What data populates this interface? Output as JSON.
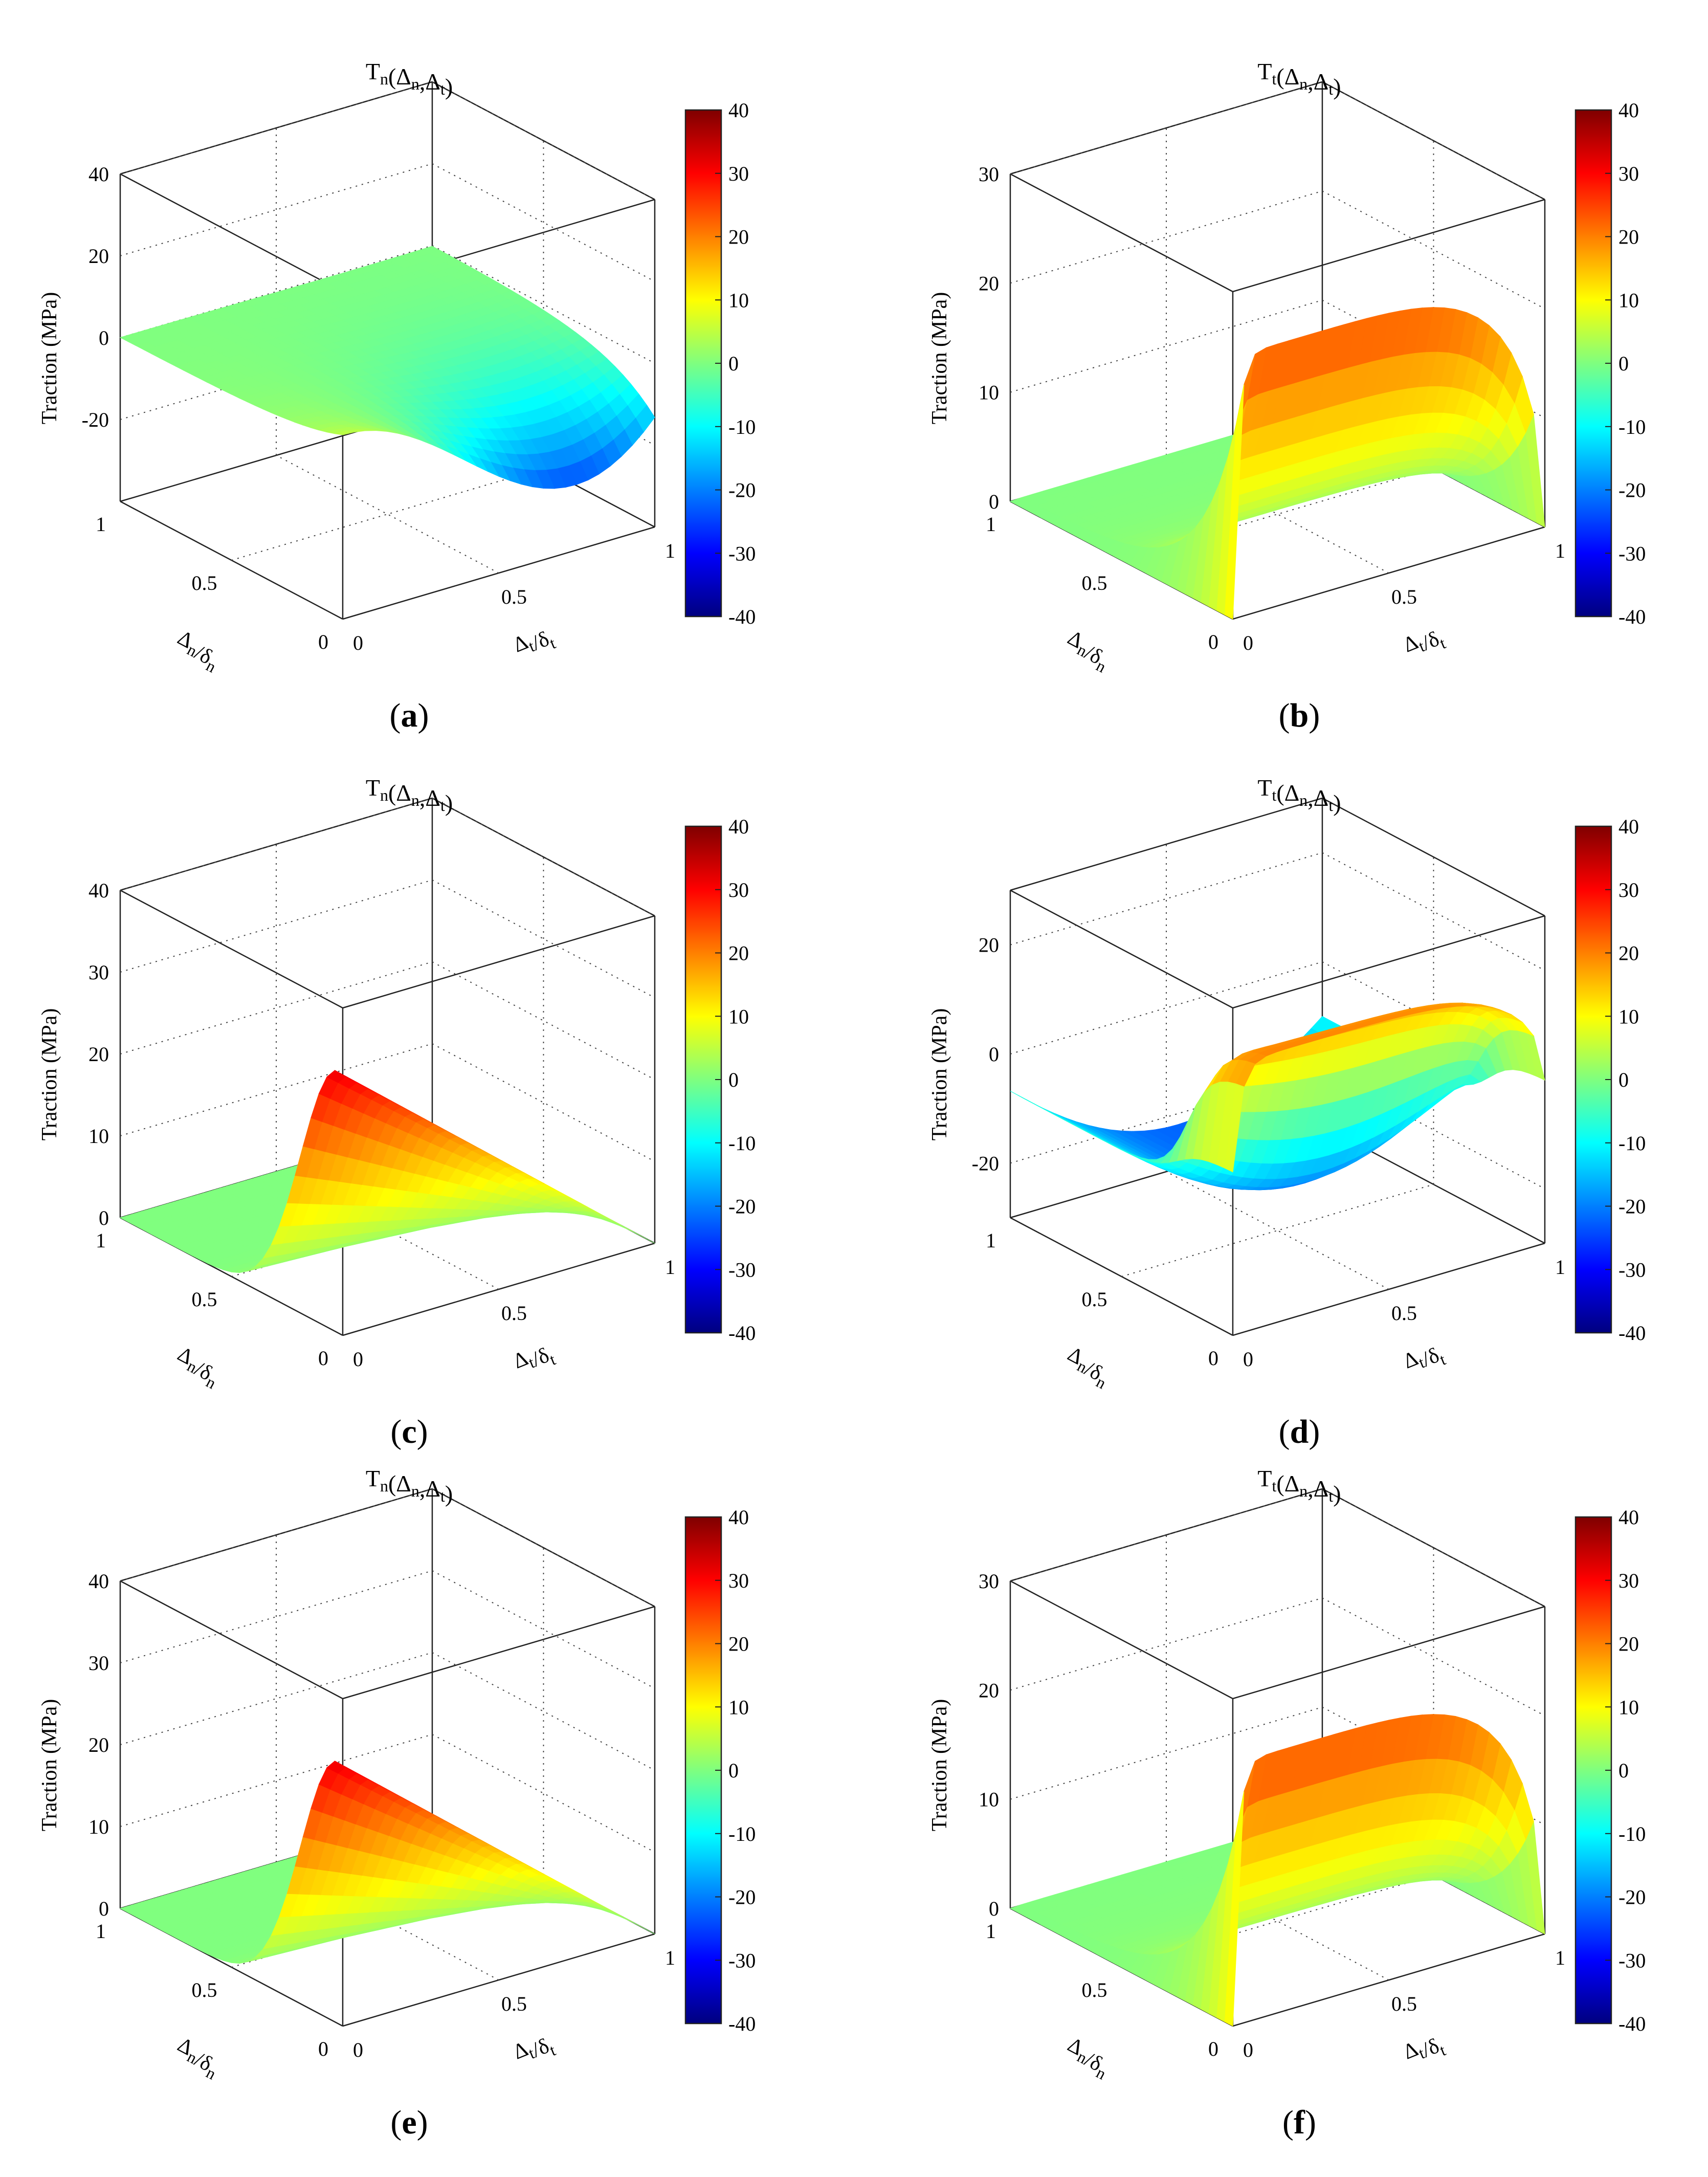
{
  "figure": {
    "panels": [
      {
        "id": "a",
        "label": "(a)",
        "label_letter": "a",
        "title": "Tn(Δn,Δt)",
        "zlabel": "Traction (MPa)",
        "xlabel": "Δt/δt",
        "ylabel": "Δn/δn"
      },
      {
        "id": "b",
        "label": "(b)",
        "label_letter": "b",
        "title": "Tt(Δn,Δt)",
        "zlabel": "Traction (MPa)",
        "xlabel": "Δt/δt",
        "ylabel": "Δn/δn"
      },
      {
        "id": "c",
        "label": "(c)",
        "label_letter": "c",
        "title": "Tn(Δn,Δt)",
        "zlabel": "Traction (MPa)",
        "xlabel": "Δt/δt",
        "ylabel": "Δn/δn"
      },
      {
        "id": "d",
        "label": "(d)",
        "label_letter": "d",
        "title": "Tt(Δn,Δt)",
        "zlabel": "Traction (MPa)",
        "xlabel": "Δt/δt",
        "ylabel": "Δn/δn"
      },
      {
        "id": "e",
        "label": "(e)",
        "label_letter": "e",
        "title": "Tn(Δn,Δt)",
        "zlabel": "Traction (MPa)",
        "xlabel": "Δt/δt",
        "ylabel": "Δn/δn"
      },
      {
        "id": "f",
        "label": "(f)",
        "label_letter": "f",
        "title": "Tt(Δn,Δt)",
        "zlabel": "Traction (MPa)",
        "xlabel": "Δt/δt",
        "ylabel": "Δn/δn"
      }
    ]
  },
  "chart_data": [
    {
      "panel": "a",
      "type": "surface",
      "title": "Tn(Δn,Δt)",
      "zlabel": "Traction (MPa)",
      "xlabel": "Δt/δt",
      "ylabel": "Δn/δn",
      "xlim": [
        0,
        1
      ],
      "ylim": [
        0,
        1
      ],
      "zlim": [
        -40,
        40
      ],
      "zticks": [
        -20,
        0,
        20,
        40
      ],
      "xticks": [
        0,
        0.5,
        1
      ],
      "yticks": [
        0,
        0.5,
        1
      ],
      "colorbar": {
        "min": -40,
        "max": 40,
        "ticks": [
          40,
          30,
          20,
          10,
          0,
          -10,
          -20,
          -30,
          -40
        ]
      },
      "surface": "sinusoidal in Δt from about +5 to -33 MPa, decaying with Δn"
    },
    {
      "panel": "b",
      "type": "surface",
      "title": "Tt(Δn,Δt)",
      "zlabel": "Traction (MPa)",
      "xlabel": "Δt/δt",
      "ylabel": "Δn/δn",
      "xlim": [
        0,
        1
      ],
      "ylim": [
        0,
        1
      ],
      "zlim": [
        0,
        30
      ],
      "zticks": [
        0,
        10,
        20,
        30
      ],
      "xticks": [
        0,
        0.5,
        1
      ],
      "yticks": [
        0,
        0.5,
        1
      ],
      "colorbar": {
        "min": -40,
        "max": 40,
        "ticks": [
          40,
          30,
          20,
          10,
          0,
          -10,
          -20,
          -30,
          -40
        ]
      },
      "surface": "rises steeply near Δt=0 to about 24 MPa, plateau dropping to 0 at Δt=1"
    },
    {
      "panel": "c",
      "type": "surface",
      "title": "Tn(Δn,Δt)",
      "zlabel": "Traction (MPa)",
      "xlabel": "Δt/δt",
      "ylabel": "Δn/δn",
      "xlim": [
        0,
        1
      ],
      "ylim": [
        0,
        1
      ],
      "zlim": [
        0,
        40
      ],
      "zticks": [
        0,
        10,
        20,
        30,
        40
      ],
      "xticks": [
        0,
        0.5,
        1
      ],
      "yticks": [
        0,
        0.5,
        1
      ],
      "colorbar": {
        "min": -40,
        "max": 40,
        "ticks": [
          40,
          30,
          20,
          10,
          0,
          -10,
          -20,
          -30,
          -40
        ]
      },
      "surface": "peak about 32 MPa at small Δn, decaying linearly to 0 at Δt=1"
    },
    {
      "panel": "d",
      "type": "surface",
      "title": "Tt(Δn,Δt)",
      "zlabel": "Traction (MPa)",
      "xlabel": "Δt/δt",
      "ylabel": "Δn/δn",
      "xlim": [
        0,
        1
      ],
      "ylim": [
        0,
        1
      ],
      "zlim": [
        -30,
        30
      ],
      "zticks": [
        -20,
        0,
        20
      ],
      "xticks": [
        0,
        0.5,
        1
      ],
      "yticks": [
        0,
        0.5,
        1
      ],
      "colorbar": {
        "min": -40,
        "max": 40,
        "ticks": [
          40,
          30,
          20,
          10,
          0,
          -10,
          -20,
          -30,
          -40
        ]
      },
      "surface": "negative about -20 to -25 MPa for large Δn, positive about 20 MPa for small Δn"
    },
    {
      "panel": "e",
      "type": "surface",
      "title": "Tn(Δn,Δt)",
      "zlabel": "Traction (MPa)",
      "xlabel": "Δt/δt",
      "ylabel": "Δn/δn",
      "xlim": [
        0,
        1
      ],
      "ylim": [
        0,
        1
      ],
      "zlim": [
        0,
        40
      ],
      "zticks": [
        0,
        10,
        20,
        30,
        40
      ],
      "xticks": [
        0,
        0.5,
        1
      ],
      "yticks": [
        0,
        0.5,
        1
      ],
      "colorbar": {
        "min": -40,
        "max": 40,
        "ticks": [
          40,
          30,
          20,
          10,
          0,
          -10,
          -20,
          -30,
          -40
        ]
      },
      "surface": "peak about 32 MPa at small Δn, decaying linearly to 0 at Δt=1"
    },
    {
      "panel": "f",
      "type": "surface",
      "title": "Tt(Δn,Δt)",
      "zlabel": "Traction (MPa)",
      "xlabel": "Δt/δt",
      "ylabel": "Δn/δn",
      "xlim": [
        0,
        1
      ],
      "ylim": [
        0,
        1
      ],
      "zlim": [
        0,
        30
      ],
      "zticks": [
        0,
        10,
        20,
        30
      ],
      "xticks": [
        0,
        0.5,
        1
      ],
      "yticks": [
        0,
        0.5,
        1
      ],
      "colorbar": {
        "min": -40,
        "max": 40,
        "ticks": [
          40,
          30,
          20,
          10,
          0,
          -10,
          -20,
          -30,
          -40
        ]
      },
      "surface": "rises steeply near Δt=0 to about 24 MPa, plateau dropping to 0 at Δt=1"
    }
  ]
}
